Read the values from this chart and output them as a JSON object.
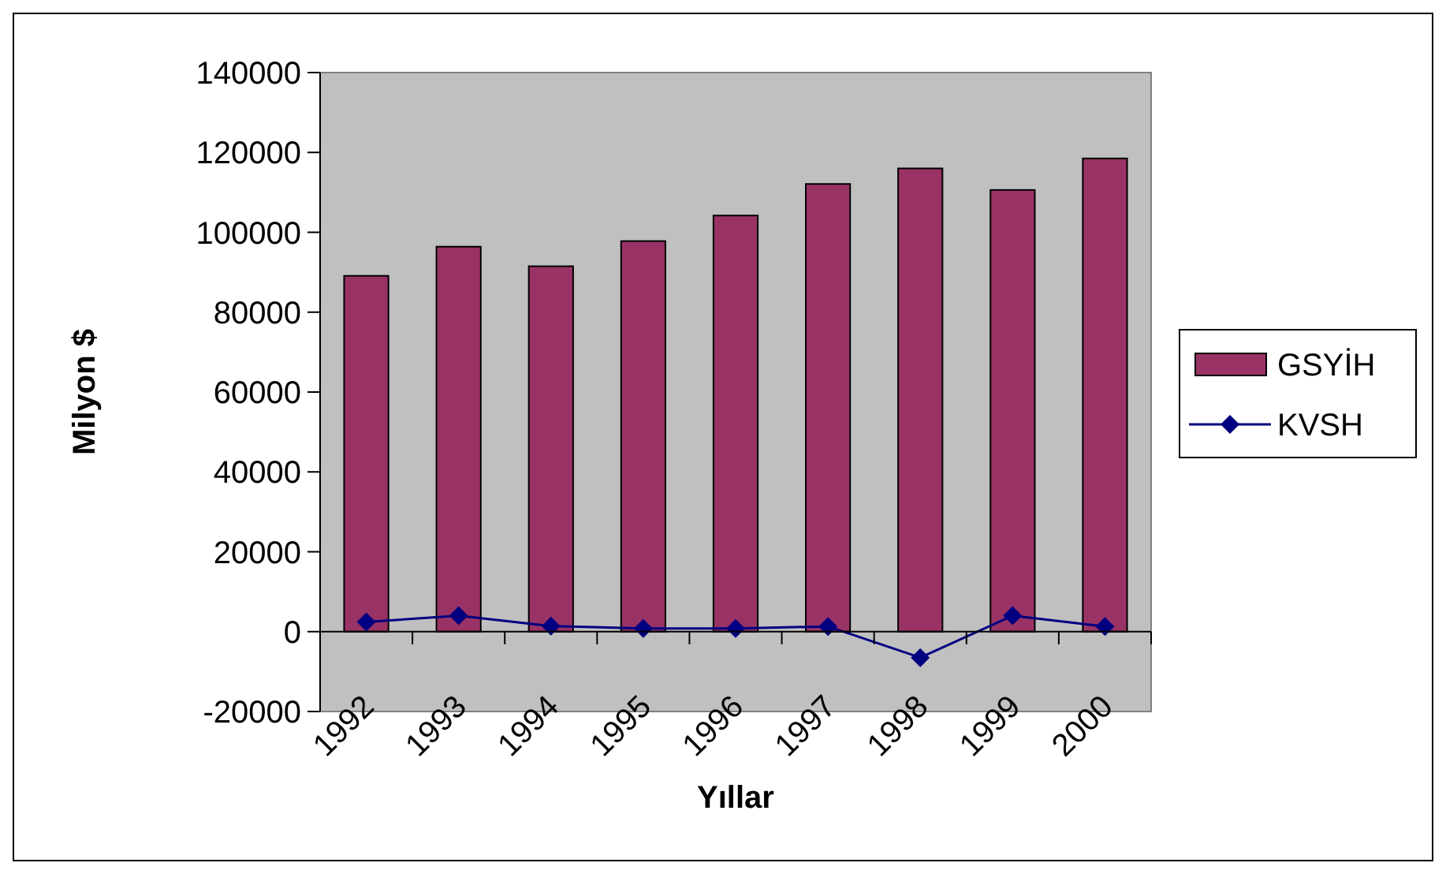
{
  "chart_data": {
    "type": "bar",
    "xlabel": "Yıllar",
    "ylabel": "Milyon $",
    "categories": [
      "1992",
      "1993",
      "1994",
      "1995",
      "1996",
      "1997",
      "1998",
      "1999",
      "2000"
    ],
    "series": [
      {
        "name": "GSYİH",
        "color": "#993366",
        "values": [
          89100,
          96400,
          91500,
          97800,
          104200,
          112100,
          116000,
          110600,
          118500
        ]
      },
      {
        "name": "KVSH",
        "type": "line",
        "color": "#000080",
        "marker": "diamond",
        "values": [
          2400,
          4000,
          1400,
          800,
          800,
          1300,
          -6500,
          4000,
          1300
        ]
      }
    ],
    "ylim": [
      -20000,
      140000
    ],
    "yticks": [
      -20000,
      0,
      20000,
      40000,
      60000,
      80000,
      100000,
      120000,
      140000
    ],
    "legend": "right"
  }
}
